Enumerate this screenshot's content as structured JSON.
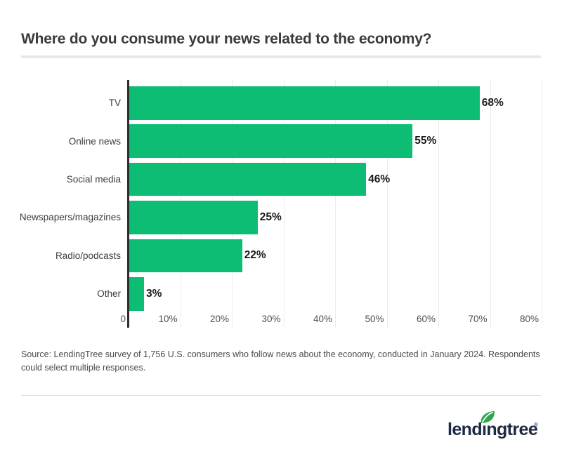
{
  "title": "Where do you consume your news related to the economy?",
  "source_note": "Source: LendingTree survey of 1,756 U.S. consumers who follow news about the economy, conducted in January 2024. Respondents could select multiple responses.",
  "logo": {
    "text": "lendingtree",
    "registered_mark": "®",
    "leaf_icon": "leaf-with-white-vein"
  },
  "colors": {
    "bar": "#0ebd74",
    "axis": "#2e2e2e",
    "gridline": "#ececec",
    "title_text": "#3a3a3a",
    "category_label": "#3d3d3d",
    "value_label": "#1a1a1a",
    "tick_label": "#4f4f4f",
    "divider": "#e8e8e8",
    "source_text": "#4a4a4a",
    "logo_text": "#1b2943",
    "logo_leaf": "#2ca94d"
  },
  "chart_data": {
    "type": "bar",
    "orientation": "horizontal",
    "title": "Where do you consume your news related to the economy?",
    "categories": [
      "TV",
      "Online news",
      "Social media",
      "Newspapers/magazines",
      "Radio/podcasts",
      "Other"
    ],
    "values": [
      68,
      55,
      46,
      25,
      22,
      3
    ],
    "value_labels": [
      "68%",
      "55%",
      "46%",
      "25%",
      "22%",
      "3%"
    ],
    "x_ticks": [
      {
        "value": 0,
        "label": "0"
      },
      {
        "value": 10,
        "label": "10%"
      },
      {
        "value": 20,
        "label": "20%"
      },
      {
        "value": 30,
        "label": "30%"
      },
      {
        "value": 40,
        "label": "40%"
      },
      {
        "value": 50,
        "label": "50%"
      },
      {
        "value": 60,
        "label": "60%"
      },
      {
        "value": 70,
        "label": "70%"
      },
      {
        "value": 80,
        "label": "80%"
      }
    ],
    "xlim": [
      0,
      80
    ],
    "grid": "vertical-gridlines-only",
    "legend": "none"
  }
}
